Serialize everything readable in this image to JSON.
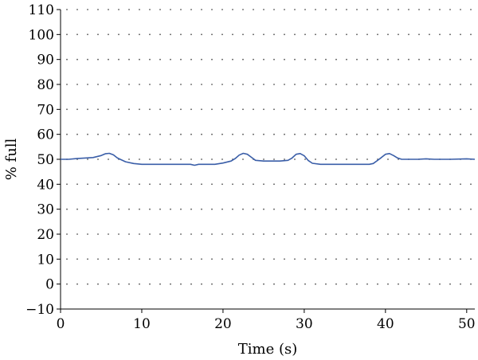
{
  "chart_data": {
    "type": "line",
    "title": "",
    "xlabel": "Time (s)",
    "ylabel": "% full",
    "xlim": [
      0,
      51
    ],
    "ylim": [
      -10,
      110
    ],
    "x_ticks": [
      0,
      10,
      20,
      30,
      40,
      50
    ],
    "y_ticks": [
      -10,
      0,
      10,
      20,
      30,
      40,
      50,
      60,
      70,
      80,
      90,
      100,
      110
    ],
    "grid": "dotted",
    "series_color": "#3a5ea8",
    "series": [
      {
        "x": [
          0,
          1,
          2,
          3,
          4,
          5,
          5.5,
          6,
          6.5,
          7,
          8,
          9,
          10,
          12,
          14,
          16,
          16.5,
          17,
          19,
          20,
          21,
          21.5,
          22,
          22.5,
          23,
          23.5,
          24,
          25,
          26,
          27,
          28,
          28.5,
          29,
          29.5,
          30,
          30.5,
          31,
          32,
          34,
          36,
          38,
          38.5,
          39,
          39.5,
          40,
          40.5,
          41,
          41.5,
          42,
          43,
          44,
          45,
          46,
          48,
          50,
          51
        ],
        "y": [
          50,
          50,
          50.3,
          50.5,
          50.7,
          51.5,
          52.2,
          52.4,
          51.8,
          50.5,
          49,
          48.3,
          48,
          48,
          48,
          48,
          47.6,
          48,
          48,
          48.5,
          49.3,
          50.3,
          51.7,
          52.4,
          52,
          50.8,
          49.6,
          49.3,
          49.3,
          49.3,
          49.6,
          50.5,
          52,
          52.3,
          51.4,
          49.5,
          48.4,
          48,
          48,
          48,
          48,
          48.3,
          49.5,
          50.7,
          52,
          52.3,
          51.5,
          50.5,
          50,
          50,
          50,
          50.2,
          50,
          50,
          50.2,
          50
        ]
      }
    ]
  }
}
